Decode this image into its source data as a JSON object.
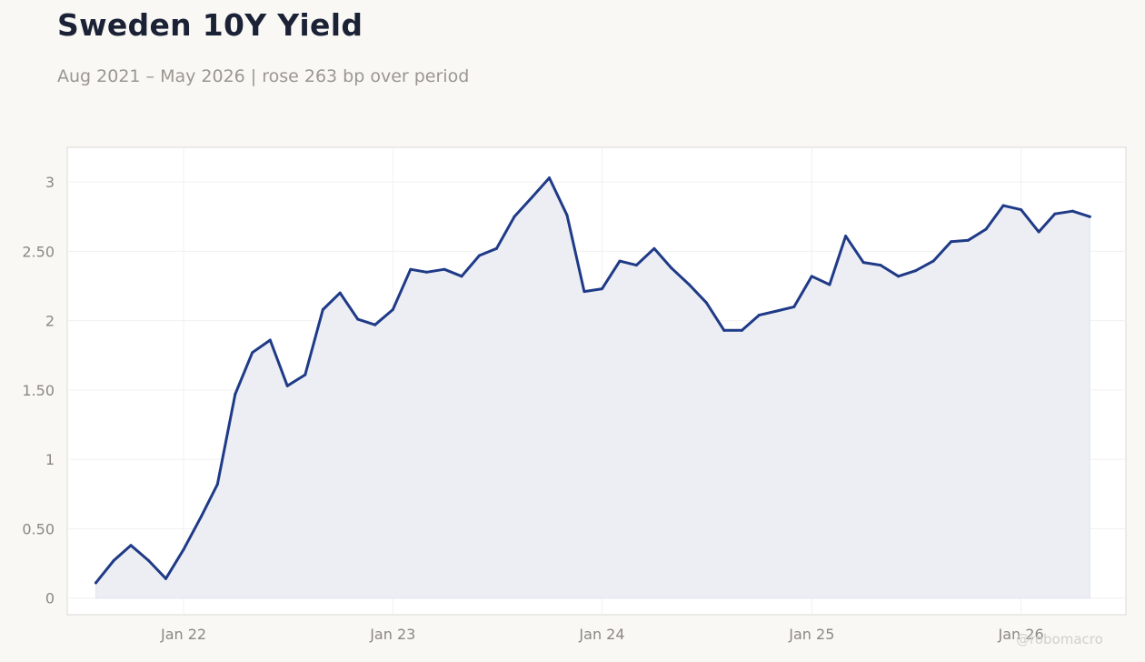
{
  "title": "Sweden 10Y Yield",
  "subtitle": "Aug 2021 – May 2026 | rose 263 bp over period",
  "watermark": "@robomacro",
  "colors": {
    "line": "#1f3a87",
    "area": "#eceef4",
    "grid": "#f0f0f1",
    "axis_text": "#8b8884",
    "plot_bg": "#ffffff",
    "page_bg": "#f9f8f5"
  },
  "chart_data": {
    "type": "area",
    "title": "Sweden 10Y Yield",
    "subtitle": "Aug 2021 – May 2026 | rose 263 bp over period",
    "xlabel": "",
    "ylabel": "",
    "ylim": [
      -0.12,
      3.25
    ],
    "xlim": [
      "2021-06-12",
      "2026-07-03"
    ],
    "grid": true,
    "legend": "none",
    "y_ticks": [
      0,
      0.5,
      1,
      1.5,
      2,
      2.5,
      3
    ],
    "y_tick_labels": [
      "0",
      "0.50",
      "1",
      "1.50",
      "2",
      "2.50",
      "3"
    ],
    "x_ticks": [
      "2022-01-01",
      "2023-01-01",
      "2024-01-01",
      "2025-01-01",
      "2026-01-01"
    ],
    "x_tick_labels": [
      "Jan 22",
      "Jan 23",
      "Jan 24",
      "Jan 25",
      "Jan 26"
    ],
    "series": [
      {
        "x": [
          "2021-08-01",
          "2021-09-01",
          "2021-10-01",
          "2021-11-01",
          "2021-12-01",
          "2022-01-01",
          "2022-02-01",
          "2022-03-01",
          "2022-04-01",
          "2022-05-01",
          "2022-06-01",
          "2022-07-01",
          "2022-08-01",
          "2022-09-01",
          "2022-10-01",
          "2022-11-01",
          "2022-12-01",
          "2023-01-01",
          "2023-02-01",
          "2023-03-01",
          "2023-04-01",
          "2023-05-01",
          "2023-06-01",
          "2023-07-01",
          "2023-08-01",
          "2023-09-01",
          "2023-10-01",
          "2023-11-01",
          "2023-12-01",
          "2024-01-01",
          "2024-02-01",
          "2024-03-01",
          "2024-04-01",
          "2024-05-01",
          "2024-06-01",
          "2024-07-01",
          "2024-08-01",
          "2024-09-01",
          "2024-10-01",
          "2024-11-01",
          "2024-12-01",
          "2025-01-01",
          "2025-02-01",
          "2025-03-01",
          "2025-04-01",
          "2025-05-01",
          "2025-06-01",
          "2025-07-01",
          "2025-08-01",
          "2025-09-01",
          "2025-10-01",
          "2025-11-01",
          "2025-12-01",
          "2026-01-01",
          "2026-02-01",
          "2026-03-01",
          "2026-04-01",
          "2026-05-01"
        ],
        "values": [
          0.11,
          0.27,
          0.38,
          0.27,
          0.14,
          0.35,
          0.59,
          0.82,
          1.47,
          1.77,
          1.86,
          1.53,
          1.61,
          2.08,
          2.2,
          2.01,
          1.97,
          2.08,
          2.37,
          2.35,
          2.37,
          2.32,
          2.47,
          2.52,
          2.75,
          2.89,
          3.03,
          2.76,
          2.21,
          2.23,
          2.43,
          2.4,
          2.52,
          2.38,
          2.26,
          2.13,
          1.93,
          1.93,
          2.04,
          2.07,
          2.1,
          2.32,
          2.26,
          2.61,
          2.42,
          2.4,
          2.32,
          2.36,
          2.43,
          2.57,
          2.58,
          2.66,
          2.83,
          2.8,
          2.64,
          2.77,
          2.79,
          2.75
        ]
      }
    ]
  }
}
